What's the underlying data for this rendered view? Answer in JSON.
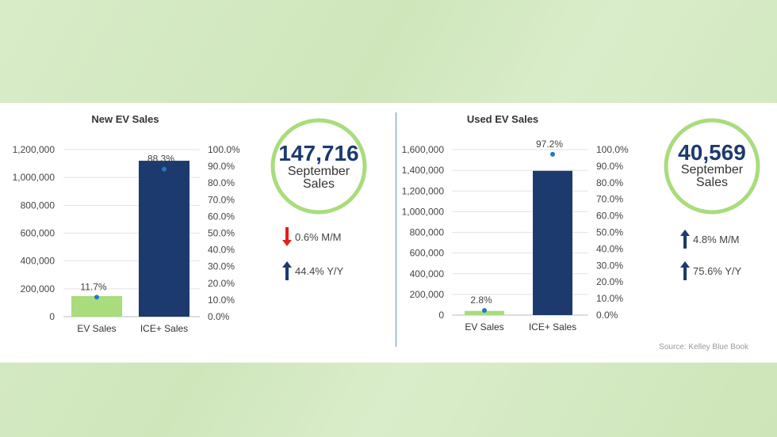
{
  "source": "Source: Kelley Blue Book",
  "chart_data": [
    {
      "type": "bar",
      "title": "New EV Sales",
      "categories": [
        "EV Sales",
        "ICE+ Sales"
      ],
      "values": [
        147716,
        1120000
      ],
      "share_pct": [
        11.7,
        88.3
      ],
      "share_labels": [
        "11.7%",
        "88.3%"
      ],
      "bar_colors": [
        "#a9dc7c",
        "#1d3a6e"
      ],
      "ylim": [
        0,
        1200000
      ],
      "y_ticks": [
        "0",
        "200,000",
        "400,000",
        "600,000",
        "800,000",
        "1,000,000",
        "1,200,000"
      ],
      "y2lim": [
        0,
        100
      ],
      "y2_ticks": [
        "0.0%",
        "10.0%",
        "20.0%",
        "30.0%",
        "40.0%",
        "50.0%",
        "60.0%",
        "70.0%",
        "80.0%",
        "90.0%",
        "100.0%"
      ],
      "grid": true
    },
    {
      "type": "bar",
      "title": "Used EV Sales",
      "categories": [
        "EV Sales",
        "ICE+ Sales"
      ],
      "values": [
        40569,
        1395000
      ],
      "share_pct": [
        2.8,
        97.2
      ],
      "share_labels": [
        "2.8%",
        "97.2%"
      ],
      "bar_colors": [
        "#a9dc7c",
        "#1d3a6e"
      ],
      "ylim": [
        0,
        1600000
      ],
      "y_ticks": [
        "0",
        "200,000",
        "400,000",
        "600,000",
        "800,000",
        "1,000,000",
        "1,200,000",
        "1,400,000",
        "1,600,000"
      ],
      "y2lim": [
        0,
        100
      ],
      "y2_ticks": [
        "0.0%",
        "10.0%",
        "20.0%",
        "30.0%",
        "40.0%",
        "50.0%",
        "60.0%",
        "70.0%",
        "80.0%",
        "90.0%",
        "100.0%"
      ],
      "grid": true
    }
  ],
  "kpis": [
    {
      "number": "147,716",
      "line1": "September",
      "line2": "Sales",
      "changes": [
        {
          "direction": "down",
          "color": "#e02020",
          "text": "0.6% M/M"
        },
        {
          "direction": "up",
          "color": "#1d3a6e",
          "text": "44.4% Y/Y"
        }
      ]
    },
    {
      "number": "40,569",
      "line1": "September",
      "line2": "Sales",
      "changes": [
        {
          "direction": "up",
          "color": "#1d3a6e",
          "text": "4.8% M/M"
        },
        {
          "direction": "up",
          "color": "#1d3a6e",
          "text": "75.6% Y/Y"
        }
      ]
    }
  ],
  "ring_color": "#a9dc7c",
  "marker_color": "#1f78c8"
}
